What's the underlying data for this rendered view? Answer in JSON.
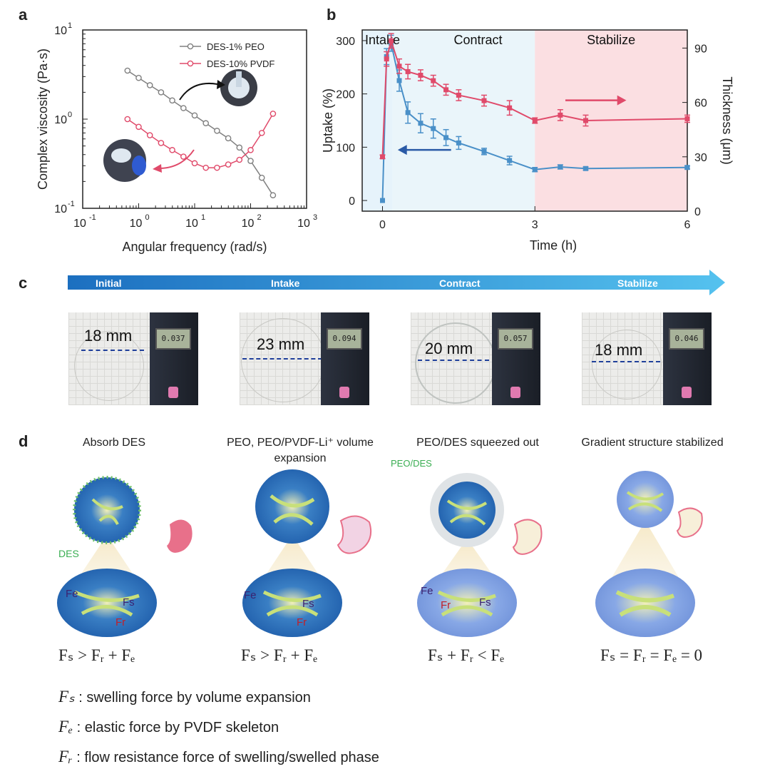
{
  "panels": {
    "a": "a",
    "b": "b",
    "c": "c",
    "d": "d"
  },
  "chart_data": [
    {
      "panel": "a",
      "type": "line",
      "xlabel": "Angular frequency (rad/s)",
      "ylabel": "Complex viscosity (Pa·s)",
      "xscale": "log",
      "yscale": "log",
      "xlim": [
        0.1,
        1000
      ],
      "ylim": [
        0.1,
        10
      ],
      "x_ticks": [
        "10",
        "10",
        "10",
        "10",
        "10"
      ],
      "x_tick_exponents": [
        "-1",
        "0",
        "1",
        "2",
        "3"
      ],
      "y_ticks": [
        "10",
        "10",
        "10"
      ],
      "y_tick_exponents": [
        "-1",
        "0",
        "1"
      ],
      "legend_position": "top-right",
      "series": [
        {
          "name": "DES-1% PEO",
          "color": "#808080",
          "x": [
            0.631,
            1.0,
            1.585,
            2.512,
            3.981,
            6.31,
            10.0,
            15.85,
            25.12,
            39.81,
            63.1,
            100.0,
            158.5,
            251.2
          ],
          "y": [
            3.5,
            2.9,
            2.4,
            2.0,
            1.62,
            1.33,
            1.1,
            0.9,
            0.74,
            0.61,
            0.48,
            0.34,
            0.22,
            0.14
          ]
        },
        {
          "name": "DES-10% PVDF",
          "color": "#e04a6a",
          "x": [
            0.631,
            1.0,
            1.585,
            2.512,
            3.981,
            6.31,
            10.0,
            15.85,
            25.12,
            39.81,
            63.1,
            100.0,
            158.5,
            251.2
          ],
          "y": [
            1.0,
            0.82,
            0.66,
            0.54,
            0.45,
            0.38,
            0.32,
            0.285,
            0.285,
            0.31,
            0.35,
            0.45,
            0.7,
            1.15
          ]
        }
      ]
    },
    {
      "panel": "b",
      "type": "line",
      "xlabel": "Time (h)",
      "ylabel": "Uptake (%)",
      "ylabel_right": "Thickness (μm)",
      "xlim": [
        -0.4,
        6
      ],
      "ylim": [
        -20,
        320
      ],
      "ylim_right": [
        0,
        100
      ],
      "x_ticks": [
        "0",
        "3",
        "6"
      ],
      "y_ticks": [
        "0",
        "100",
        "200",
        "300"
      ],
      "y_ticks_right": [
        "0",
        "30",
        "60",
        "90"
      ],
      "regions": [
        {
          "label": "Intake",
          "from": -0.4,
          "to": 0.2,
          "color": "#e6f3fb"
        },
        {
          "label": "Contract",
          "from": 0.2,
          "to": 3,
          "color": "#eaf5fa"
        },
        {
          "label": "Stabilize",
          "from": 3,
          "to": 6,
          "color": "#fbdfe2"
        }
      ],
      "series": [
        {
          "name": "Uptake",
          "color": "#4a90c8",
          "axis": "left",
          "x": [
            0,
            0.08,
            0.17,
            0.33,
            0.5,
            0.75,
            1.0,
            1.25,
            1.5,
            2.0,
            2.5,
            3.0,
            3.5,
            4.0,
            6.0
          ],
          "y": [
            0,
            270,
            295,
            225,
            165,
            145,
            135,
            118,
            108,
            92,
            75,
            58,
            63,
            60,
            62
          ],
          "err": [
            0,
            15,
            15,
            20,
            20,
            18,
            18,
            15,
            12,
            6,
            8,
            4,
            4,
            3,
            3
          ]
        },
        {
          "name": "Thickness",
          "color": "#e04a6a",
          "axis": "right",
          "x": [
            0,
            0.08,
            0.17,
            0.33,
            0.5,
            0.75,
            1.0,
            1.25,
            1.5,
            2.0,
            2.5,
            3.0,
            3.5,
            4.0,
            6.0
          ],
          "y": [
            30,
            84,
            94,
            80,
            77,
            75,
            72,
            67,
            64,
            61,
            57,
            50,
            53,
            50,
            51
          ],
          "err": [
            1,
            4,
            4,
            4,
            4,
            3,
            3,
            3,
            3,
            3,
            4,
            1.5,
            3,
            3,
            2
          ]
        }
      ]
    }
  ],
  "panel_c": {
    "stages": [
      "Initial",
      "Intake",
      "Contract",
      "Stabilize"
    ],
    "photos": [
      {
        "measure": "18 mm",
        "gauge": "0.037"
      },
      {
        "measure": "23 mm",
        "gauge": "0.094"
      },
      {
        "measure": "20 mm",
        "gauge": "0.057"
      },
      {
        "measure": "18 mm",
        "gauge": "0.046"
      }
    ]
  },
  "panel_d": {
    "stages": [
      {
        "title": "Absorb DES",
        "extra_label": "DES",
        "fe": "Fe",
        "fs": "Fs",
        "fr": "Fr"
      },
      {
        "title": "PEO, PEO/PVDF-Li⁺ volume expansion",
        "fe": "Fe",
        "fs": "Fs",
        "fr": "Fr"
      },
      {
        "title": "PEO/DES squeezed out",
        "extra_label": "PEO/DES",
        "fe": "Fe",
        "fs": "Fs",
        "fr": "Fr"
      },
      {
        "title": "Gradient structure stabilized"
      }
    ],
    "equations": [
      "Fₛ > Fᵣ + Fₑ",
      "Fₛ > Fᵣ + Fₑ",
      "Fₛ + Fᵣ < Fₑ",
      "Fₛ = Fᵣ = Fₑ = 0"
    ],
    "legend": [
      {
        "symbol": "Fₛ",
        "text": ": swelling force by volume expansion"
      },
      {
        "symbol": "Fₑ",
        "text": ": elastic force by PVDF skeleton"
      },
      {
        "symbol": "Fᵣ",
        "text": ": flow resistance force of swelling/swelled phase"
      }
    ]
  }
}
